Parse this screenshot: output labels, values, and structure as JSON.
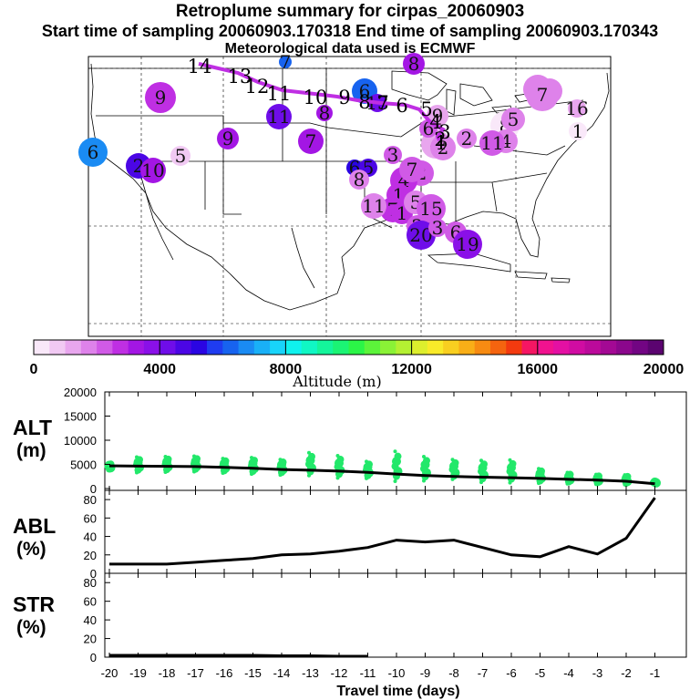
{
  "header": {
    "title": "Retroplume summary for cirpas_20060903",
    "sampling_line": "Start time of sampling 20060903.170318     End time of sampling 20060903.170343",
    "met_line": "Meteorological data used is ECMWF"
  },
  "colorbar": {
    "label": "Altitude (m)",
    "ticks": [
      "0",
      "4000",
      "8000",
      "12000",
      "16000",
      "20000"
    ],
    "colors": [
      "#f9e8f9",
      "#f1c9f3",
      "#e8a6ee",
      "#de82ea",
      "#d05ae6",
      "#bf2fe3",
      "#a316e4",
      "#8a10e8",
      "#6f0de9",
      "#4b06e5",
      "#2a05e3",
      "#1f3cf0",
      "#1763ef",
      "#1a8bf3",
      "#19b0f7",
      "#18d4fa",
      "#0ff2ee",
      "#10f7c4",
      "#14f59b",
      "#1bf474",
      "#2bf547",
      "#5cf43a",
      "#8af236",
      "#b4f032",
      "#ddee2d",
      "#f9ea29",
      "#f9cf20",
      "#f9ae17",
      "#f78b12",
      "#f5640f",
      "#f33a0f",
      "#f51663",
      "#f1128f",
      "#e410a3",
      "#d00ca2",
      "#bb0a9b",
      "#a30994",
      "#8b078c",
      "#720583",
      "#5b0470"
    ]
  },
  "map": {
    "track_points": [
      {
        "label": "1",
        "day": 1,
        "alt": 1000
      },
      {
        "label": "2",
        "day": 2,
        "alt": 1500
      },
      {
        "label": "3",
        "day": 3,
        "alt": 2000
      },
      {
        "label": "4",
        "day": 4,
        "alt": 1600
      },
      {
        "label": "5",
        "day": 5,
        "alt": 2000
      },
      {
        "label": "6",
        "day": 6,
        "alt": 3000
      },
      {
        "label": "7",
        "day": 7,
        "alt": 3000
      },
      {
        "label": "8",
        "day": 8,
        "alt": 2500
      },
      {
        "label": "9",
        "day": 9,
        "alt": 2500
      },
      {
        "label": "10",
        "day": 10,
        "alt": 3000
      },
      {
        "label": "11",
        "day": 11,
        "alt": 3000
      },
      {
        "label": "12",
        "day": 12,
        "alt": 3000
      },
      {
        "label": "13",
        "day": 13,
        "alt": 3500
      },
      {
        "label": "14",
        "day": 14,
        "alt": 3500
      }
    ],
    "blobs": [
      {
        "label": "7",
        "alt": 6000
      },
      {
        "label": "8",
        "alt": 3000
      },
      {
        "label": "9",
        "alt": 2500
      },
      {
        "label": "11",
        "alt": 4000
      },
      {
        "label": "8",
        "alt": 3200
      },
      {
        "label": "6",
        "alt": 6500
      },
      {
        "label": "9",
        "alt": 3000
      },
      {
        "label": "7",
        "alt": 3000
      },
      {
        "label": "6",
        "alt": 6000
      },
      {
        "label": "13",
        "alt": 4000
      },
      {
        "label": "2",
        "alt": 4600
      },
      {
        "label": "10",
        "alt": 3200
      },
      {
        "label": "5",
        "alt": 500
      },
      {
        "label": "6",
        "alt": 1500
      },
      {
        "label": "6",
        "alt": 1500
      },
      {
        "label": "7",
        "alt": 1600
      },
      {
        "label": "16",
        "alt": 1200
      },
      {
        "label": "1",
        "alt": 300
      },
      {
        "label": "9",
        "alt": 1100
      },
      {
        "label": "8",
        "alt": 300
      },
      {
        "label": "5",
        "alt": 1500
      },
      {
        "label": "4",
        "alt": 1500
      },
      {
        "label": "4",
        "alt": 1200
      },
      {
        "label": "2",
        "alt": 1500
      },
      {
        "label": "11",
        "alt": 2000
      },
      {
        "label": "6",
        "alt": 2000
      },
      {
        "label": "2",
        "alt": 1800
      },
      {
        "label": "3",
        "alt": 2000
      },
      {
        "label": "6",
        "alt": 5000
      },
      {
        "label": "5",
        "alt": 4800
      },
      {
        "label": "8",
        "alt": 1500
      },
      {
        "label": "2",
        "alt": 2000
      },
      {
        "label": "4",
        "alt": 2500
      },
      {
        "label": "7",
        "alt": 2000
      },
      {
        "label": "1",
        "alt": 2800
      },
      {
        "label": "7",
        "alt": 2500
      },
      {
        "label": "11",
        "alt": 1800
      },
      {
        "label": "1",
        "alt": 2500
      },
      {
        "label": "5",
        "alt": 1600
      },
      {
        "label": "2",
        "alt": 2200
      },
      {
        "label": "15",
        "alt": 2200
      },
      {
        "label": "20",
        "alt": 4300
      },
      {
        "label": "6",
        "alt": 2000
      },
      {
        "label": "19",
        "alt": 3800
      },
      {
        "label": "3",
        "alt": 2400
      }
    ]
  },
  "chart_data": [
    {
      "type": "scatter",
      "panel": "ALT",
      "ylabel": "ALT (m)",
      "ylim": [
        0,
        20000
      ],
      "yticks": [
        "20000",
        "15000",
        "10000",
        "5000",
        "0"
      ],
      "xlim": [
        -20,
        -1
      ],
      "median_line": {
        "x": [
          -20,
          -19,
          -18,
          -17,
          -16,
          -15,
          -14,
          -13,
          -12,
          -11,
          -10,
          -9,
          -8,
          -7,
          -6,
          -5,
          -4,
          -3,
          -2,
          -1
        ],
        "y": [
          4700,
          4650,
          4600,
          4550,
          4400,
          4200,
          3950,
          3800,
          3600,
          3350,
          3000,
          2700,
          2500,
          2350,
          2250,
          2100,
          1900,
          1750,
          1500,
          1000
        ]
      },
      "particle_clusters": {
        "x": [
          -20,
          -19,
          -18,
          -17,
          -16,
          -15,
          -14,
          -13,
          -12,
          -11,
          -10,
          -9,
          -8,
          -7,
          -6,
          -5,
          -4,
          -3,
          -2,
          -1
        ],
        "low": [
          3800,
          3300,
          3400,
          3500,
          3200,
          3000,
          2800,
          2700,
          2200,
          2100,
          1500,
          1600,
          1900,
          1300,
          1200,
          1100,
          1000,
          900,
          800,
          1000
        ],
        "high": [
          5300,
          6500,
          6600,
          6700,
          6200,
          6400,
          6000,
          7400,
          6800,
          5600,
          7700,
          6600,
          6000,
          5800,
          5900,
          4100,
          3300,
          2900,
          2800,
          1500
        ]
      }
    },
    {
      "type": "line",
      "panel": "ABL",
      "ylabel": "ABL (%)",
      "ylim": [
        0,
        90
      ],
      "yticks": [
        "80",
        "60",
        "40",
        "20",
        "0"
      ],
      "x": [
        -20,
        -19,
        -18,
        -17,
        -16,
        -15,
        -14,
        -13,
        -12,
        -11,
        -10,
        -9,
        -8,
        -7,
        -6,
        -5,
        -4,
        -3,
        -2,
        -1
      ],
      "y": [
        10,
        10,
        10,
        12,
        14,
        16,
        20,
        21,
        24,
        28,
        36,
        34,
        36,
        28,
        20,
        18,
        29,
        21,
        38,
        82
      ]
    },
    {
      "type": "line",
      "panel": "STR",
      "ylabel": "STR (%)",
      "ylim": [
        0,
        90
      ],
      "yticks": [
        "80",
        "60",
        "40",
        "20",
        "0"
      ],
      "x": [
        -20,
        -19,
        -18,
        -17,
        -16,
        -15,
        -14,
        -13,
        -12,
        -11
      ],
      "y": [
        2,
        2,
        2,
        2,
        2,
        2,
        1.5,
        1.5,
        1,
        1
      ]
    }
  ],
  "xaxis": {
    "ticks": [
      "-20",
      "-19",
      "-18",
      "-17",
      "-16",
      "-15",
      "-14",
      "-13",
      "-12",
      "-11",
      "-10",
      "-9",
      "-8",
      "-7",
      "-6",
      "-5",
      "-4",
      "-3",
      "-2",
      "-1"
    ],
    "label": "Travel time (days)"
  },
  "panel_labels": {
    "alt_top": "ALT",
    "alt_bottom": "(m)",
    "abl_top": "ABL",
    "abl_bottom": "(%)",
    "str_top": "STR",
    "str_bottom": "(%)"
  }
}
